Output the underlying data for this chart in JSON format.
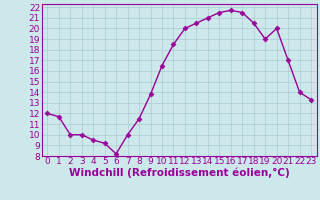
{
  "x": [
    0,
    1,
    2,
    3,
    4,
    5,
    6,
    7,
    8,
    9,
    10,
    11,
    12,
    13,
    14,
    15,
    16,
    17,
    18,
    19,
    20,
    21,
    22,
    23
  ],
  "y": [
    12,
    11.7,
    10,
    10,
    9.5,
    9.2,
    8.2,
    10,
    11.5,
    13.8,
    16.5,
    18.5,
    20,
    20.5,
    21,
    21.5,
    21.7,
    21.5,
    20.5,
    19,
    20,
    17,
    14,
    13.3
  ],
  "line_color": "#990099",
  "marker": "D",
  "marker_size": 2.5,
  "bg_color": "#cce8eb",
  "grid_color": "#b0d0d8",
  "xlabel": "Windchill (Refroidissement éolien,°C)",
  "xlabel_color": "#990099",
  "tick_color": "#990099",
  "ylim": [
    8,
    22
  ],
  "xlim": [
    -0.5,
    23.5
  ],
  "yticks": [
    8,
    9,
    10,
    11,
    12,
    13,
    14,
    15,
    16,
    17,
    18,
    19,
    20,
    21,
    22
  ],
  "xticks": [
    0,
    1,
    2,
    3,
    4,
    5,
    6,
    7,
    8,
    9,
    10,
    11,
    12,
    13,
    14,
    15,
    16,
    17,
    18,
    19,
    20,
    21,
    22,
    23
  ],
  "line_width": 1.0,
  "tick_fontsize": 6.5,
  "xlabel_fontsize": 7.5
}
